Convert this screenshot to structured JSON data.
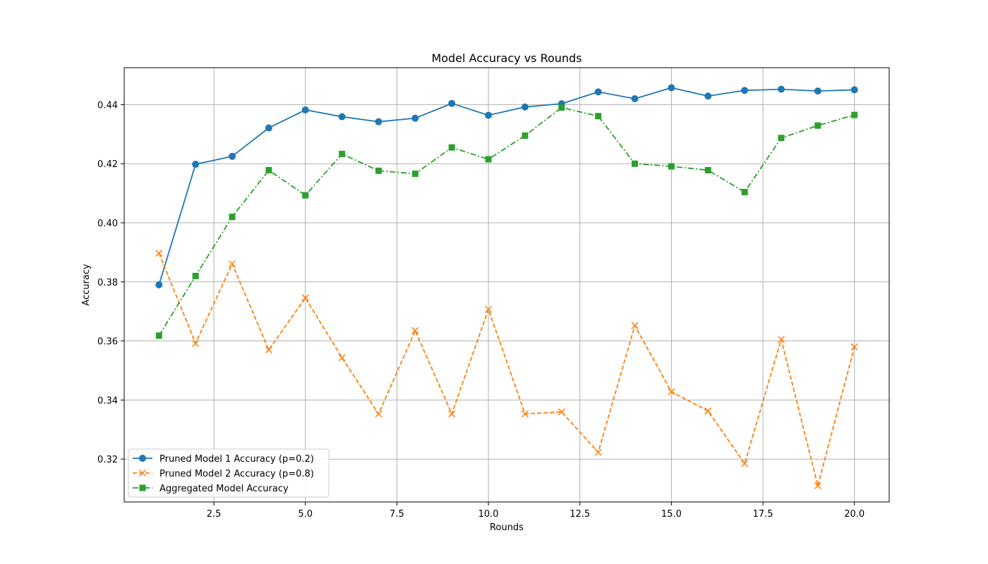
{
  "chart_data": {
    "type": "line",
    "title": "Model Accuracy vs Rounds",
    "xlabel": "Rounds",
    "ylabel": "Accuracy",
    "xlim": [
      0.05,
      20.95
    ],
    "ylim": [
      0.3055,
      0.4525
    ],
    "xticks": [
      2.5,
      5.0,
      7.5,
      10.0,
      12.5,
      15.0,
      17.5,
      20.0
    ],
    "xtick_labels": [
      "2.5",
      "5.0",
      "7.5",
      "10.0",
      "12.5",
      "15.0",
      "17.5",
      "20.0"
    ],
    "yticks": [
      0.32,
      0.34,
      0.36,
      0.38,
      0.4,
      0.42,
      0.44
    ],
    "ytick_labels": [
      "0.32",
      "0.34",
      "0.36",
      "0.38",
      "0.40",
      "0.42",
      "0.44"
    ],
    "grid": true,
    "legend_position": "lower-left",
    "x": [
      1,
      2,
      3,
      4,
      5,
      6,
      7,
      8,
      9,
      10,
      11,
      12,
      13,
      14,
      15,
      16,
      17,
      18,
      19,
      20
    ],
    "series": [
      {
        "name": "Pruned Model 1 Accuracy (p=0.2)",
        "color": "#1f77b4",
        "marker": "circle",
        "line_style": "solid",
        "values": [
          0.379,
          0.4198,
          0.4225,
          0.4321,
          0.4382,
          0.4359,
          0.4342,
          0.4354,
          0.4404,
          0.4364,
          0.4392,
          0.4403,
          0.4443,
          0.442,
          0.4457,
          0.4429,
          0.4448,
          0.4452,
          0.4446,
          0.445
        ]
      },
      {
        "name": "Pruned Model 2 Accuracy (p=0.8)",
        "color": "#ff7f0e",
        "marker": "x",
        "line_style": "dashed",
        "values": [
          0.3897,
          0.3592,
          0.3861,
          0.357,
          0.3746,
          0.3543,
          0.3353,
          0.3635,
          0.3353,
          0.3707,
          0.3353,
          0.336,
          0.3223,
          0.3652,
          0.3428,
          0.3363,
          0.3185,
          0.3605,
          0.311,
          0.358
        ]
      },
      {
        "name": "Aggregated Model Accuracy",
        "color": "#2ca02c",
        "marker": "square",
        "line_style": "dash-dot",
        "values": [
          0.3618,
          0.382,
          0.402,
          0.4178,
          0.4093,
          0.4233,
          0.4176,
          0.4166,
          0.4255,
          0.4215,
          0.4295,
          0.439,
          0.4361,
          0.42,
          0.4191,
          0.4178,
          0.4104,
          0.4287,
          0.4329,
          0.4365
        ]
      }
    ]
  }
}
